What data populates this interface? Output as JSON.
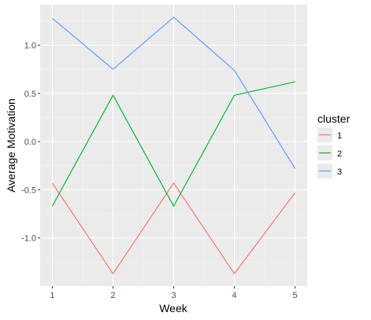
{
  "chart_data": {
    "type": "line",
    "title": "",
    "xlabel": "Week",
    "ylabel": "Average Motivation",
    "x": [
      1,
      2,
      3,
      4,
      5
    ],
    "x_ticks": [
      "1",
      "2",
      "3",
      "4",
      "5"
    ],
    "y_ticks": [
      {
        "value": 1.0,
        "label": "1.0"
      },
      {
        "value": 0.5,
        "label": "0.5"
      },
      {
        "value": 0.0,
        "label": "0.0"
      },
      {
        "value": -0.5,
        "label": "-0.5"
      },
      {
        "value": -1.0,
        "label": "-1.0"
      }
    ],
    "xlim": [
      0.8,
      5.2
    ],
    "ylim": [
      -1.5,
      1.42
    ],
    "grid": true,
    "panel_background": "#ebebeb",
    "legend": {
      "title": "cluster",
      "position": "right"
    },
    "series": [
      {
        "name": "1",
        "color": "#f8766d",
        "values": [
          -0.43,
          -1.37,
          -0.43,
          -1.37,
          -0.53
        ]
      },
      {
        "name": "2",
        "color": "#00ba38",
        "values": [
          -0.67,
          0.48,
          -0.67,
          0.48,
          0.62
        ]
      },
      {
        "name": "3",
        "color": "#619cff",
        "values": [
          1.28,
          0.75,
          1.29,
          0.74,
          -0.28
        ]
      }
    ]
  }
}
